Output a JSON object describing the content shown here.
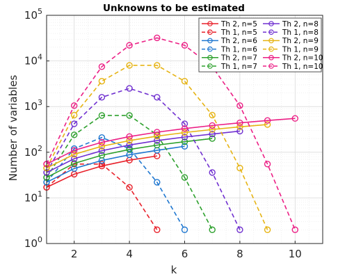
{
  "chart_data": {
    "type": "line",
    "title": "Unknowns to be estimated",
    "xlabel": "k",
    "ylabel": "Number of variables",
    "xlim": [
      1,
      11
    ],
    "ylim": [
      1,
      100000
    ],
    "yscale": "log",
    "grid": true,
    "legend_position": "top-right",
    "xticks": [
      "2",
      "4",
      "6",
      "8",
      "10"
    ],
    "xtick_values": [
      2,
      4,
      6,
      8,
      10
    ],
    "yticks": [
      {
        "base": "10",
        "exp": "0",
        "value": 1
      },
      {
        "base": "10",
        "exp": "1",
        "value": 10
      },
      {
        "base": "10",
        "exp": "2",
        "value": 100
      },
      {
        "base": "10",
        "exp": "3",
        "value": 1000
      },
      {
        "base": "10",
        "exp": "4",
        "value": 10000
      },
      {
        "base": "10",
        "exp": "5",
        "value": 100000
      }
    ],
    "series": [
      {
        "name": "Th 2, n=5",
        "color": "#e8202a",
        "dash": false,
        "x": [
          1,
          2,
          3,
          4,
          5
        ],
        "y": [
          17,
          33,
          50,
          67,
          83
        ]
      },
      {
        "name": "Th 1, n=5",
        "color": "#e8202a",
        "dash": true,
        "x": [
          1,
          2,
          3,
          4,
          5
        ],
        "y": [
          17,
          55,
          55,
          17,
          2
        ]
      },
      {
        "name": "Th 2, n=6",
        "color": "#1f77d0",
        "dash": false,
        "x": [
          1,
          2,
          3,
          4,
          5,
          6
        ],
        "y": [
          22,
          44,
          66,
          88,
          110,
          135
        ]
      },
      {
        "name": "Th 1, n=6",
        "color": "#1f77d0",
        "dash": true,
        "x": [
          1,
          2,
          3,
          4,
          5,
          6
        ],
        "y": [
          22,
          120,
          210,
          120,
          22,
          2
        ]
      },
      {
        "name": "Th 2, n=7",
        "color": "#2ca02c",
        "dash": false,
        "x": [
          1,
          2,
          3,
          4,
          5,
          6,
          7
        ],
        "y": [
          28,
          57,
          86,
          115,
          143,
          170,
          200
        ]
      },
      {
        "name": "Th 1, n=7",
        "color": "#2ca02c",
        "dash": true,
        "x": [
          1,
          2,
          3,
          4,
          5,
          6,
          7
        ],
        "y": [
          28,
          240,
          640,
          640,
          240,
          28,
          2
        ]
      },
      {
        "name": "Th 2, n=8",
        "color": "#7030d0",
        "dash": false,
        "x": [
          1,
          2,
          3,
          4,
          5,
          6,
          7,
          8
        ],
        "y": [
          36,
          72,
          108,
          144,
          180,
          215,
          250,
          290
        ]
      },
      {
        "name": "Th 1, n=8",
        "color": "#7030d0",
        "dash": true,
        "x": [
          1,
          2,
          3,
          4,
          5,
          6,
          7,
          8
        ],
        "y": [
          36,
          420,
          1600,
          2500,
          1600,
          420,
          36,
          2
        ]
      },
      {
        "name": "Th 2, n=9",
        "color": "#e6b312",
        "dash": false,
        "x": [
          1,
          2,
          3,
          4,
          5,
          6,
          7,
          8,
          9
        ],
        "y": [
          45,
          90,
          135,
          180,
          225,
          270,
          315,
          360,
          405
        ]
      },
      {
        "name": "Th 1, n=9",
        "color": "#e6b312",
        "dash": true,
        "x": [
          1,
          2,
          3,
          4,
          5,
          6,
          7,
          8,
          9
        ],
        "y": [
          45,
          650,
          3600,
          8000,
          8000,
          3600,
          650,
          45,
          2
        ]
      },
      {
        "name": "Th 2, n=10",
        "color": "#ec1f85",
        "dash": false,
        "x": [
          1,
          2,
          3,
          4,
          5,
          6,
          7,
          8,
          9,
          10
        ],
        "y": [
          55,
          110,
          165,
          220,
          275,
          330,
          385,
          440,
          495,
          550
        ]
      },
      {
        "name": "Th 1, n=10",
        "color": "#ec1f85",
        "dash": true,
        "x": [
          1,
          2,
          3,
          4,
          5,
          6,
          7,
          8,
          9,
          10
        ],
        "y": [
          55,
          1050,
          7500,
          22000,
          32000,
          22000,
          7500,
          1050,
          55,
          2
        ]
      }
    ]
  }
}
